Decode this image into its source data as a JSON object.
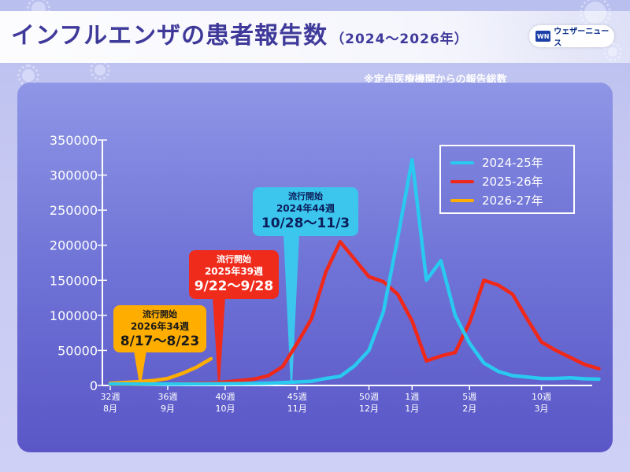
{
  "header": {
    "title_main": "インフルエンザの患者報告数",
    "title_years": "（2024～2026年）",
    "brand": "ウェザーニュース",
    "note": "※定点医療機関からの報告総数"
  },
  "colors": {
    "series_2024": "#29c9f0",
    "series_2025": "#f0281a",
    "series_2026": "#ffae00",
    "callout_2024": "#3cc6ee",
    "callout_2025": "#ef2b1c",
    "callout_2026": "#ffae00",
    "title_color": "#3f3a9a"
  },
  "callouts": [
    {
      "line1": "流行開始",
      "line2": "2026年34週",
      "line3": "8/17～8/23"
    },
    {
      "line1": "流行開始",
      "line2": "2025年39週",
      "line3": "9/22～9/28"
    },
    {
      "line1": "流行開始",
      "line2": "2024年44週",
      "line3": "10/28～11/3"
    }
  ],
  "chart_data": {
    "type": "line",
    "ylim": [
      0,
      350000
    ],
    "y_ticks": [
      "0",
      "50000",
      "100000",
      "150000",
      "200000",
      "250000",
      "300000",
      "350000"
    ],
    "x_ticks": [
      {
        "week_index": 0,
        "week": "32週",
        "month": "8月"
      },
      {
        "week_index": 4,
        "week": "36週",
        "month": "9月"
      },
      {
        "week_index": 8,
        "week": "40週",
        "month": "10月"
      },
      {
        "week_index": 13,
        "week": "45週",
        "month": "11月"
      },
      {
        "week_index": 18,
        "week": "50週",
        "month": "12月"
      },
      {
        "week_index": 21,
        "week": "1週",
        "month": "1月"
      },
      {
        "week_index": 25,
        "week": "5週",
        "month": "2月"
      },
      {
        "week_index": 30,
        "week": "10週",
        "month": "3月"
      }
    ],
    "legend_position": "top-right",
    "series": [
      {
        "name": "2024-25年",
        "color": "#29c9f0",
        "values": [
          2000,
          2000,
          2000,
          2000,
          2000,
          2100,
          2200,
          2300,
          2500,
          2700,
          2900,
          3200,
          4000,
          5000,
          6000,
          10000,
          13000,
          28000,
          50000,
          105000,
          210000,
          322000,
          150000,
          178000,
          100000,
          60000,
          32000,
          20000,
          14000,
          12000,
          10000,
          10000,
          11000,
          9500,
          9000
        ]
      },
      {
        "name": "2025-26年",
        "color": "#f0281a",
        "values": [
          1500,
          1500,
          1600,
          1700,
          2000,
          2500,
          3000,
          3500,
          5000,
          7000,
          9000,
          14000,
          27000,
          60000,
          95000,
          162000,
          205000,
          180000,
          155000,
          148000,
          130000,
          92000,
          35000,
          42000,
          47000,
          90000,
          150000,
          143000,
          130000,
          95000,
          62000,
          50000,
          40000,
          30000,
          24000
        ]
      },
      {
        "name": "2026-27年",
        "color": "#ffae00",
        "values": [
          3000,
          4200,
          5500,
          7000,
          10000,
          17000,
          26000,
          38000
        ]
      }
    ]
  }
}
